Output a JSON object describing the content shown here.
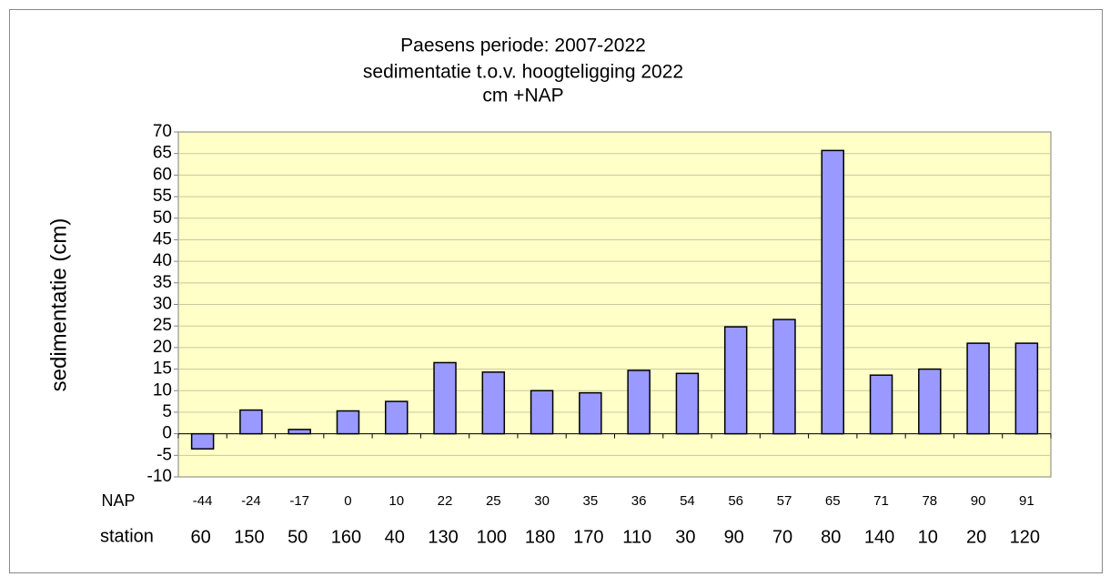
{
  "chart_data": {
    "type": "bar",
    "title": [
      "Paesens periode: 2007-2022",
      "sedimentatie t.o.v. hoogteligging 2022",
      "cm +NAP"
    ],
    "y_label": "sedimentatie (cm)",
    "category_label": "NAP",
    "categories": [
      "-44",
      "-24",
      "-17",
      "0",
      "10",
      "22",
      "25",
      "30",
      "35",
      "36",
      "54",
      "56",
      "57",
      "65",
      "71",
      "78",
      "90",
      "91"
    ],
    "station_label": "station",
    "stations": [
      "60",
      "150",
      "50",
      "160",
      "40",
      "130",
      "100",
      "180",
      "170",
      "110",
      "30",
      "90",
      "70",
      "80",
      "140",
      "10",
      "20",
      "120"
    ],
    "values": [
      -3.5,
      5.5,
      1,
      5.3,
      7.5,
      16.5,
      14.3,
      10,
      9.5,
      14.7,
      14,
      24.8,
      26.5,
      65.7,
      13.6,
      15,
      21,
      21
    ],
    "color": "#9999ff",
    "ylim": [
      -10,
      70
    ],
    "yticks": [
      -10,
      -5,
      0,
      5,
      10,
      15,
      20,
      25,
      30,
      35,
      40,
      45,
      50,
      55,
      60,
      65,
      70
    ],
    "grid": true
  }
}
